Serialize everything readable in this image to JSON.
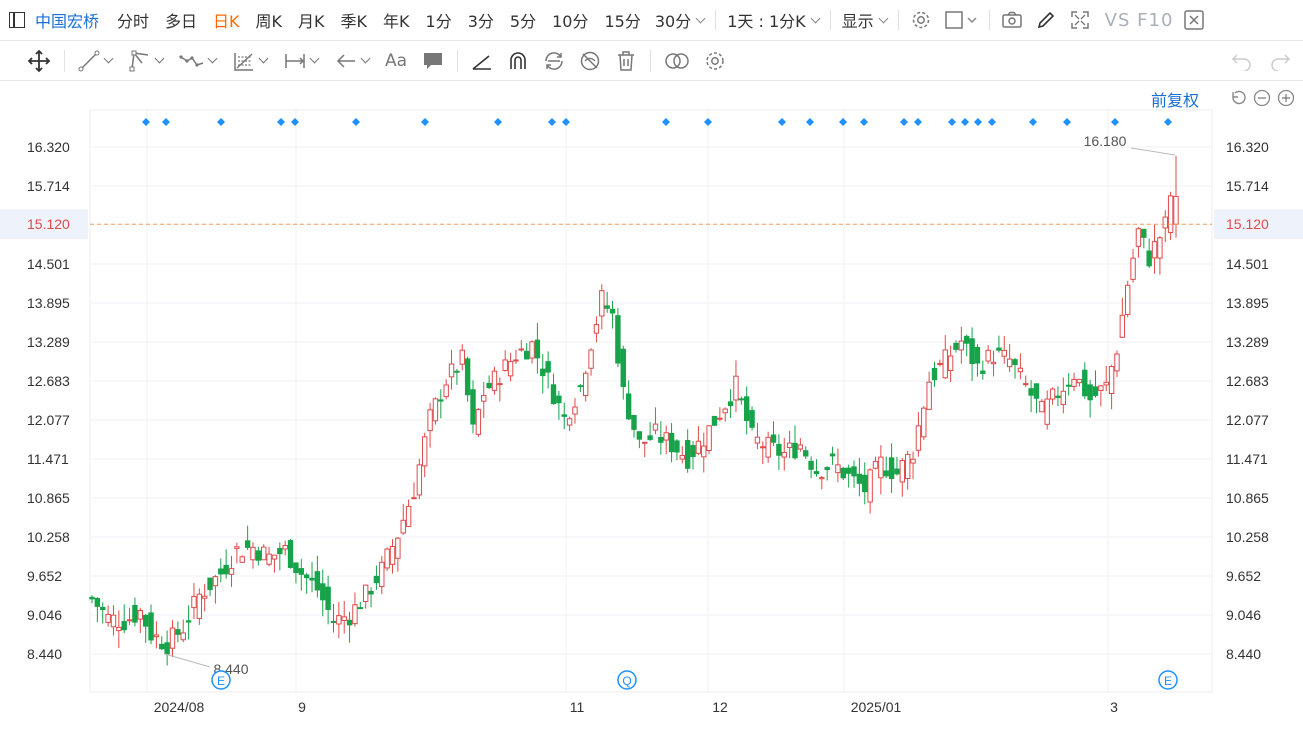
{
  "toolbar": {
    "stock_name": "中国宏桥",
    "periods": [
      "分时",
      "多日",
      "日K",
      "周K",
      "月K",
      "季K",
      "年K",
      "1分",
      "3分",
      "5分",
      "10分",
      "15分"
    ],
    "active_period": "日K",
    "minute_select": "30分",
    "multi_period": "1天 : 1分K",
    "display_label": "显示",
    "vs_f10": "VS F10"
  },
  "drawing_tools": {
    "font_label": "Aa"
  },
  "chart_controls": {
    "adjust_label": "前复权"
  },
  "chart_data": {
    "type": "candlestick",
    "y_ticks": [
      "16.320",
      "15.714",
      "15.120",
      "14.501",
      "13.895",
      "13.289",
      "12.683",
      "12.077",
      "11.471",
      "10.865",
      "10.258",
      "9.652",
      "9.046",
      "8.440"
    ],
    "x_ticks": [
      "2024/08",
      "9",
      "11",
      "12",
      "2025/01",
      "3"
    ],
    "current_price": "15.120",
    "max_label": "16.180",
    "min_label": "8.440",
    "event_markers": [
      "E",
      "Q",
      "E"
    ],
    "colors": {
      "up": "#e04a4a",
      "down": "#16a34a",
      "price_line": "#f0a060",
      "price_label": "#e04a4a",
      "marker": "#1e90ff"
    },
    "anchors": [
      [
        0,
        9.3
      ],
      [
        3,
        9.0
      ],
      [
        6,
        8.95
      ],
      [
        9,
        9.1
      ],
      [
        11,
        8.75
      ],
      [
        14,
        8.6
      ],
      [
        17,
        8.85
      ],
      [
        20,
        9.35
      ],
      [
        24,
        9.7
      ],
      [
        27,
        10.05
      ],
      [
        30,
        10.1
      ],
      [
        33,
        9.95
      ],
      [
        36,
        10.05
      ],
      [
        39,
        9.7
      ],
      [
        42,
        9.45
      ],
      [
        45,
        8.95
      ],
      [
        48,
        9.05
      ],
      [
        51,
        9.35
      ],
      [
        54,
        9.75
      ],
      [
        57,
        10.3
      ],
      [
        60,
        11.0
      ],
      [
        63,
        12.1
      ],
      [
        66,
        12.7
      ],
      [
        69,
        13.0
      ],
      [
        71,
        11.9
      ],
      [
        73,
        12.5
      ],
      [
        76,
        12.8
      ],
      [
        79,
        13.1
      ],
      [
        82,
        13.25
      ],
      [
        85,
        12.7
      ],
      [
        88,
        12.1
      ],
      [
        91,
        12.6
      ],
      [
        93,
        13.3
      ],
      [
        95,
        13.95
      ],
      [
        97,
        13.7
      ],
      [
        99,
        12.5
      ],
      [
        102,
        11.7
      ],
      [
        105,
        11.85
      ],
      [
        108,
        11.7
      ],
      [
        111,
        11.5
      ],
      [
        114,
        11.8
      ],
      [
        117,
        12.2
      ],
      [
        120,
        12.6
      ],
      [
        123,
        11.8
      ],
      [
        126,
        11.65
      ],
      [
        129,
        11.55
      ],
      [
        132,
        11.7
      ],
      [
        135,
        11.3
      ],
      [
        138,
        11.4
      ],
      [
        141,
        11.2
      ],
      [
        144,
        11.0
      ],
      [
        147,
        11.4
      ],
      [
        150,
        11.25
      ],
      [
        153,
        11.6
      ],
      [
        156,
        12.7
      ],
      [
        159,
        13.0
      ],
      [
        162,
        13.3
      ],
      [
        165,
        12.9
      ],
      [
        168,
        13.1
      ],
      [
        171,
        13.0
      ],
      [
        174,
        12.6
      ],
      [
        177,
        12.2
      ],
      [
        180,
        12.5
      ],
      [
        183,
        12.8
      ],
      [
        186,
        12.4
      ],
      [
        189,
        12.6
      ],
      [
        191,
        13.2
      ],
      [
        193,
        14.2
      ],
      [
        195,
        15.0
      ],
      [
        197,
        14.6
      ],
      [
        200,
        15.1
      ],
      [
        202,
        16.05
      ]
    ]
  }
}
